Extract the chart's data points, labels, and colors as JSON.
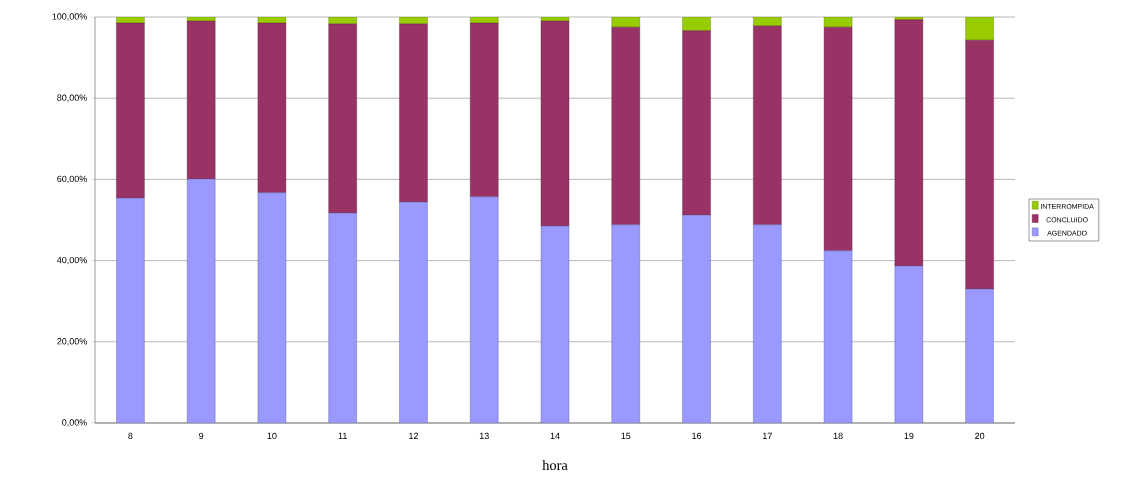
{
  "chart_data": {
    "type": "bar",
    "stacked": true,
    "xlabel": "hora",
    "categories": [
      "8",
      "9",
      "10",
      "11",
      "12",
      "13",
      "14",
      "15",
      "16",
      "17",
      "18",
      "19",
      "20"
    ],
    "series": [
      {
        "name": "AGENDADO",
        "color": "#9999ff",
        "values": [
          55.4,
          60.1,
          56.7,
          51.7,
          54.4,
          55.7,
          48.5,
          48.8,
          51.2,
          48.8,
          42.4,
          38.7,
          33.0
        ]
      },
      {
        "name": "CONCLUIDO",
        "color": "#993366",
        "values": [
          43.1,
          38.9,
          41.8,
          46.6,
          43.9,
          42.8,
          50.5,
          48.7,
          45.4,
          49.0,
          55.1,
          60.6,
          61.3
        ]
      },
      {
        "name": "INTERROMPIDA",
        "color": "#99cc00",
        "values": [
          1.5,
          1.0,
          1.5,
          1.7,
          1.7,
          1.5,
          1.0,
          2.5,
          3.4,
          2.2,
          2.5,
          0.7,
          5.7
        ]
      }
    ],
    "ylim": [
      0,
      100
    ],
    "yticks": [
      {
        "value": 0,
        "label": "0,00%"
      },
      {
        "value": 20,
        "label": "20,00%"
      },
      {
        "value": 40,
        "label": "40,00%"
      },
      {
        "value": 60,
        "label": "60,00%"
      },
      {
        "value": 80,
        "label": "80,00%"
      },
      {
        "value": 100,
        "label": "100,00%"
      }
    ],
    "grid": "y",
    "legend": "right"
  }
}
